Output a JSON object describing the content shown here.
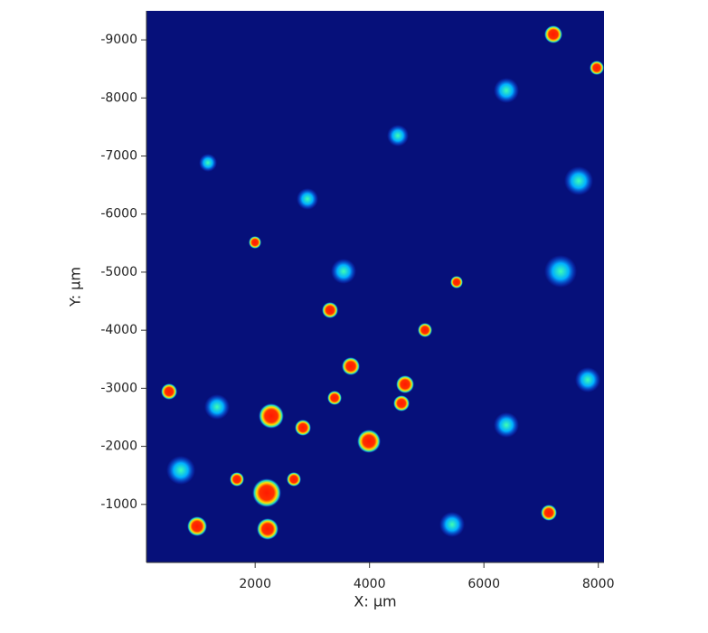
{
  "chart_data": {
    "type": "heatmap",
    "x_label": "X: µm",
    "y_label": "Y: µm",
    "xlim": [
      100,
      8100
    ],
    "xticks": [
      2000,
      4000,
      6000,
      8000
    ],
    "ylim": [
      0,
      -9500
    ],
    "yticks": [
      -1000,
      -2000,
      -3000,
      -4000,
      -5000,
      -6000,
      -7000,
      -8000,
      -9000
    ]
  }
}
